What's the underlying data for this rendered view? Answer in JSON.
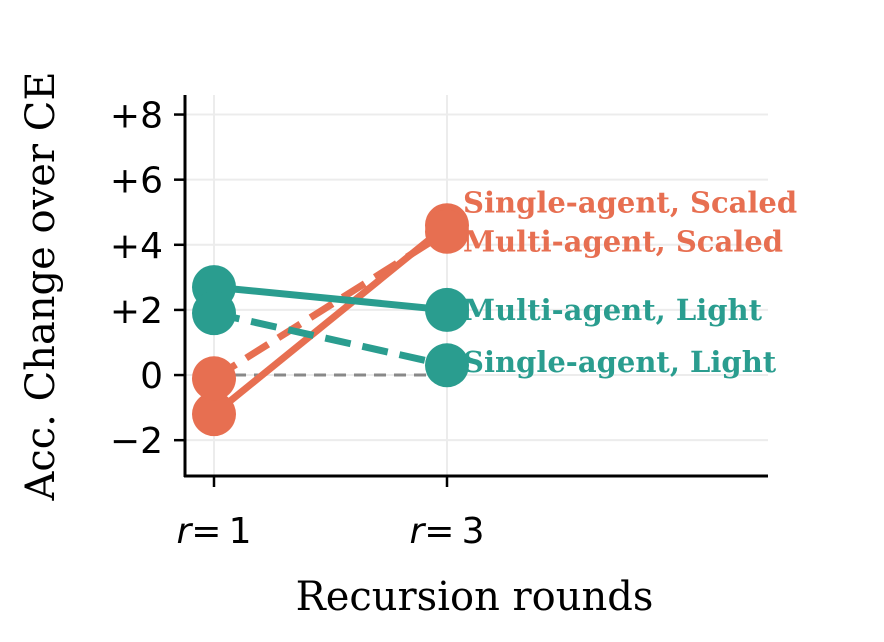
{
  "chart_data": {
    "type": "line",
    "xlabel": "Recursion rounds",
    "ylabel": "Acc. Change over CE",
    "x_categories": [
      {
        "label": "r = 1",
        "var": "r",
        "eq": "= 1"
      },
      {
        "label": "r = 3",
        "var": "r",
        "eq": "= 3"
      }
    ],
    "ylim": [
      -3.1,
      8.6
    ],
    "yticks": [
      {
        "value": -2,
        "label": "−2"
      },
      {
        "value": 0,
        "label": "0"
      },
      {
        "value": 2,
        "label": "+2"
      },
      {
        "value": 4,
        "label": "+4"
      },
      {
        "value": 6,
        "label": "+6"
      },
      {
        "value": 8,
        "label": "+8"
      }
    ],
    "grid": true,
    "reference_line": {
      "value": 0,
      "style": "dashed",
      "color": "#888888"
    },
    "series": [
      {
        "name": "Single-agent, Scaled",
        "values": [
          -1.2,
          4.6
        ],
        "color": "#E76F51",
        "dash": "solid"
      },
      {
        "name": "Multi-agent, Scaled",
        "values": [
          -0.1,
          4.4
        ],
        "color": "#E76F51",
        "dash": "dashed"
      },
      {
        "name": "Multi-agent, Light",
        "values": [
          2.7,
          2.0
        ],
        "color": "#2A9D8F",
        "dash": "solid"
      },
      {
        "name": "Single-agent, Light",
        "values": [
          1.9,
          0.3
        ],
        "color": "#2A9D8F",
        "dash": "dashed"
      }
    ],
    "series_label_values": [
      5.3,
      4.1,
      2.0,
      0.4
    ]
  }
}
